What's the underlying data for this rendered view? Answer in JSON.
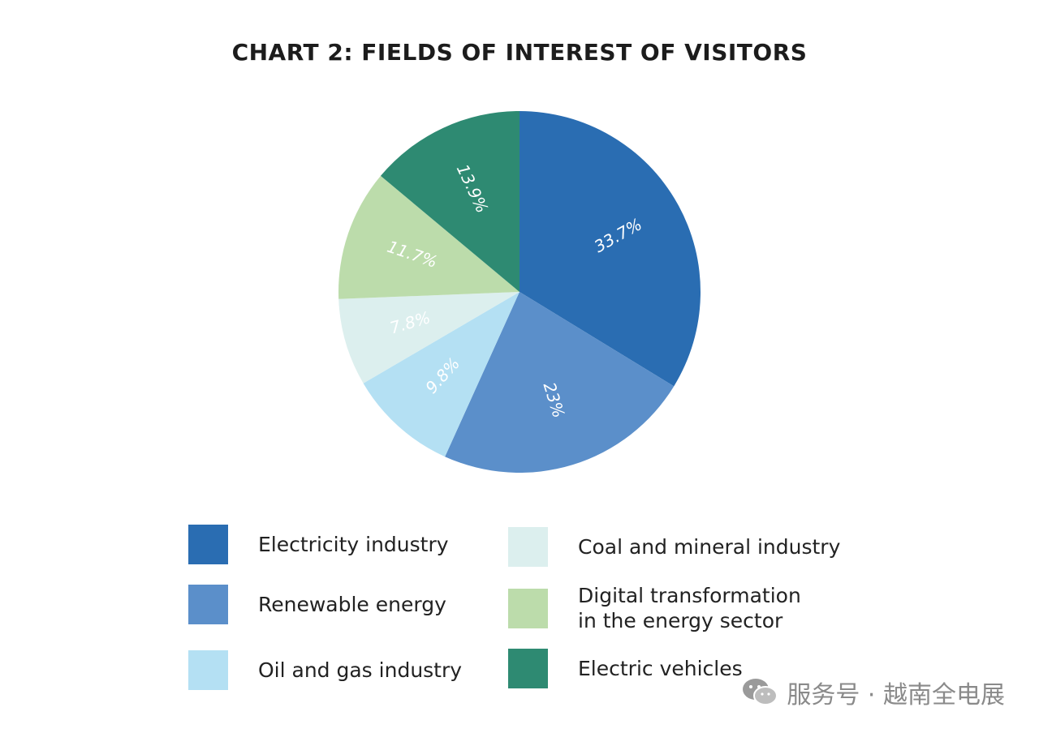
{
  "chart_data": {
    "type": "pie",
    "title": "CHART 2:  FIELDS OF INTEREST OF VISITORS",
    "slices": [
      {
        "label": "Electricity industry",
        "value": 33.7,
        "value_label": "33.7%",
        "color": "#2a6db2"
      },
      {
        "label": "Renewable energy",
        "value": 23,
        "value_label": "23%",
        "color": "#5b8fca"
      },
      {
        "label": "Oil and gas industry",
        "value": 9.8,
        "value_label": "9.8%",
        "color": "#b4e0f3"
      },
      {
        "label": "Coal and mineral industry",
        "value": 7.8,
        "value_label": "7.8%",
        "color": "#dcefee"
      },
      {
        "label": "Digital transformation\nin the energy sector",
        "value": 11.7,
        "value_label": "11.7%",
        "color": "#bcdcab"
      },
      {
        "label": "Electric vehicles",
        "value": 13.9,
        "value_label": "13.9%",
        "color": "#2e8a72"
      }
    ],
    "start_angle_deg": 0,
    "direction": "clockwise",
    "legend_position": "bottom"
  },
  "watermark": {
    "text": "服务号 · 越南全电展",
    "icon": "wechat-icon"
  }
}
